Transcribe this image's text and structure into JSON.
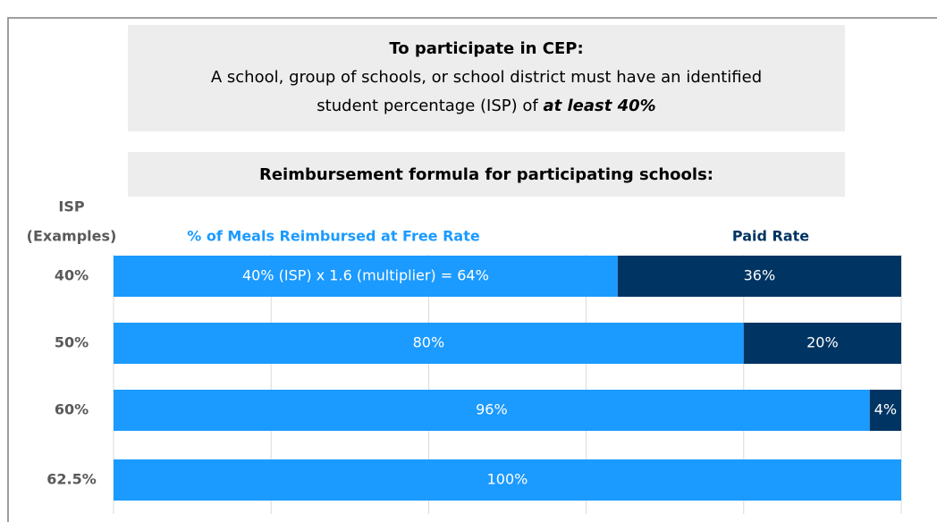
{
  "chart_data": {
    "type": "stacked_barh",
    "annotations": [
      "To participate in CEP:",
      "A school, group of schools, or school district must have an identified",
      "student percentage (ISP) of",
      "at least 40%",
      "Reimbursement formula for participating schools:"
    ],
    "ylabel": [
      "ISP",
      "(Examples)"
    ],
    "categories": [
      "40%",
      "50%",
      "60%",
      "62.5%"
    ],
    "series": [
      {
        "name": "% of Meals Reimbursed at Free Rate",
        "color": "#1b9aff",
        "values": [
          64,
          80,
          96,
          100
        ],
        "value_labels": [
          "40% (ISP) x 1.6 (multiplier) = 64%",
          "80%",
          "96%",
          "100%"
        ]
      },
      {
        "name": "Paid Rate",
        "color": "#003462",
        "values": [
          36,
          20,
          4,
          0
        ],
        "value_labels": [
          "36%",
          "20%",
          "4%",
          null
        ]
      }
    ],
    "xlim": [
      0,
      100
    ],
    "xticks": [
      0,
      20,
      40,
      60,
      80,
      100
    ],
    "grid": true
  }
}
